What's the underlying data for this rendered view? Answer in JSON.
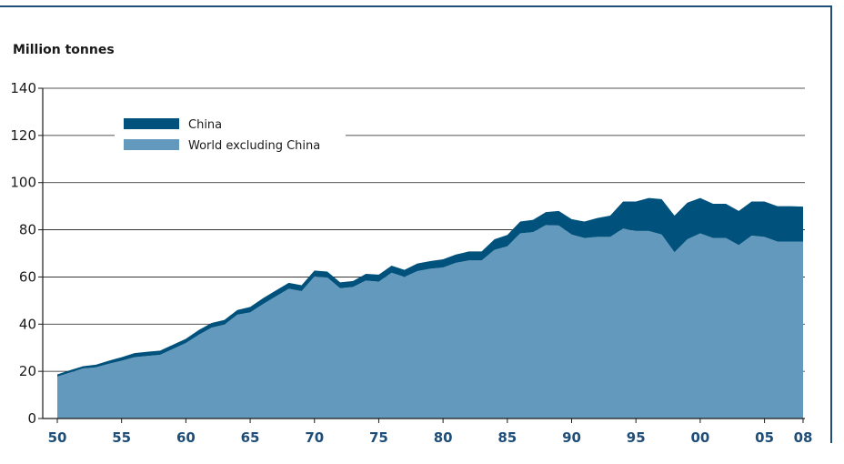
{
  "chart_data": {
    "type": "area",
    "stacked": true,
    "ylabel": "Million tonnes",
    "ylim": [
      0,
      140
    ],
    "yticks": [
      0,
      20,
      40,
      60,
      80,
      100,
      120,
      140
    ],
    "xlim": [
      1950,
      2008
    ],
    "xticks": [
      {
        "value": 1950,
        "label": "50"
      },
      {
        "value": 1955,
        "label": "55"
      },
      {
        "value": 1960,
        "label": "60"
      },
      {
        "value": 1965,
        "label": "65"
      },
      {
        "value": 1970,
        "label": "70"
      },
      {
        "value": 1975,
        "label": "75"
      },
      {
        "value": 1980,
        "label": "80"
      },
      {
        "value": 1985,
        "label": "85"
      },
      {
        "value": 1990,
        "label": "90"
      },
      {
        "value": 1995,
        "label": "95"
      },
      {
        "value": 2000,
        "label": "00"
      },
      {
        "value": 2005,
        "label": "05"
      },
      {
        "value": 2008,
        "label": "08"
      }
    ],
    "grid": true,
    "legend_position": "top-left",
    "x": [
      1950,
      1951,
      1952,
      1953,
      1954,
      1955,
      1956,
      1957,
      1958,
      1959,
      1960,
      1961,
      1962,
      1963,
      1964,
      1965,
      1966,
      1967,
      1968,
      1969,
      1970,
      1971,
      1972,
      1973,
      1974,
      1975,
      1976,
      1977,
      1978,
      1979,
      1980,
      1981,
      1982,
      1983,
      1984,
      1985,
      1986,
      1987,
      1988,
      1989,
      1990,
      1991,
      1992,
      1993,
      1994,
      1995,
      1996,
      1997,
      1998,
      1999,
      2000,
      2001,
      2002,
      2003,
      2004,
      2005,
      2006,
      2007,
      2008
    ],
    "series": [
      {
        "name": "World excluding China",
        "color": "#6399bd",
        "values": [
          17.8,
          19.5,
          21.2,
          21.7,
          23.2,
          24.5,
          26.0,
          26.5,
          27.0,
          29.5,
          32.0,
          35.5,
          38.5,
          39.8,
          44.0,
          45.0,
          48.5,
          51.8,
          55.0,
          54.0,
          60.2,
          59.8,
          55.2,
          55.8,
          58.5,
          58.0,
          61.8,
          60.0,
          62.5,
          63.5,
          64.0,
          66.0,
          67.0,
          67.0,
          71.5,
          73.0,
          78.5,
          79.0,
          82.0,
          81.8,
          78.0,
          76.5,
          77.0,
          77.0,
          80.5,
          79.5,
          79.5,
          78.0,
          70.5,
          76.0,
          78.5,
          76.5,
          76.5,
          73.5,
          77.5,
          77.0,
          75.0,
          75.0,
          75.0
        ]
      },
      {
        "name": "China",
        "color": "#00517c",
        "values": [
          0.9,
          1.0,
          1.0,
          1.1,
          1.3,
          1.5,
          1.7,
          1.8,
          1.8,
          1.8,
          1.8,
          2.0,
          2.0,
          2.0,
          2.0,
          2.3,
          2.5,
          2.5,
          2.5,
          2.5,
          2.5,
          2.5,
          2.5,
          2.5,
          2.8,
          3.0,
          3.0,
          3.0,
          3.2,
          3.2,
          3.5,
          3.5,
          3.8,
          3.8,
          4.5,
          4.8,
          5.0,
          5.2,
          5.5,
          6.2,
          6.5,
          7.0,
          8.0,
          9.0,
          11.5,
          12.5,
          14.0,
          15.0,
          15.5,
          15.5,
          15.0,
          14.5,
          14.5,
          14.5,
          14.5,
          15.0,
          15.0,
          15.0,
          14.8
        ]
      }
    ]
  }
}
